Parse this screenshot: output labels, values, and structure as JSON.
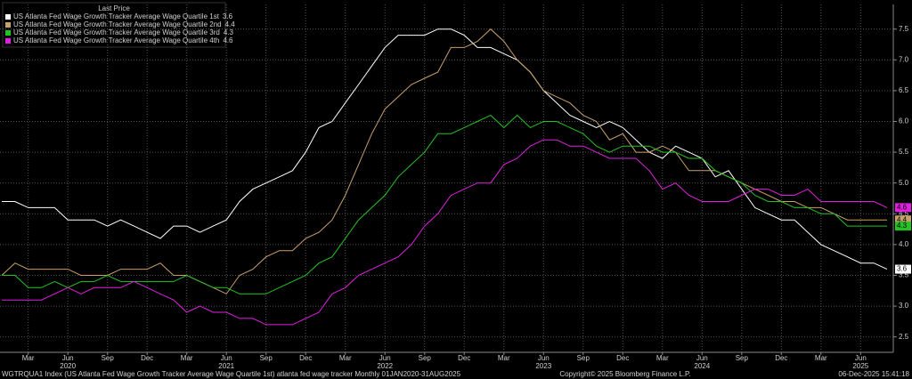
{
  "chart_data": {
    "type": "line",
    "legend_title": "Last Price",
    "footer_left": "WGTRQUA1 Index (US Atlanta Fed Wage Growth Tracker Average Wage Quartile 1st) atlanta fed wage tracker Monthly 01JAN2020-31AUG2025",
    "footer_center": "Copyright© 2025 Bloomberg Finance L.P.",
    "footer_right": "06-Dec-2025 15:41:18",
    "x": [
      "2020-01",
      "2020-02",
      "2020-03",
      "2020-04",
      "2020-05",
      "2020-06",
      "2020-07",
      "2020-08",
      "2020-09",
      "2020-10",
      "2020-11",
      "2020-12",
      "2021-01",
      "2021-02",
      "2021-03",
      "2021-04",
      "2021-05",
      "2021-06",
      "2021-07",
      "2021-08",
      "2021-09",
      "2021-10",
      "2021-11",
      "2021-12",
      "2022-01",
      "2022-02",
      "2022-03",
      "2022-04",
      "2022-05",
      "2022-06",
      "2022-07",
      "2022-08",
      "2022-09",
      "2022-10",
      "2022-11",
      "2022-12",
      "2023-01",
      "2023-02",
      "2023-03",
      "2023-04",
      "2023-05",
      "2023-06",
      "2023-07",
      "2023-08",
      "2023-09",
      "2023-10",
      "2023-11",
      "2023-12",
      "2024-01",
      "2024-02",
      "2024-03",
      "2024-04",
      "2024-05",
      "2024-06",
      "2024-07",
      "2024-08",
      "2024-09",
      "2024-10",
      "2024-11",
      "2024-12",
      "2025-01",
      "2025-02",
      "2025-03",
      "2025-04",
      "2025-05",
      "2025-06",
      "2025-07",
      "2025-08"
    ],
    "xticks": [
      {
        "value": "2020-03",
        "label": "Mar"
      },
      {
        "value": "2020-06",
        "label": "Jun"
      },
      {
        "value": "2020-09",
        "label": "Sep"
      },
      {
        "value": "2020-12",
        "label": "Dec"
      },
      {
        "value": "2021-03",
        "label": "Mar"
      },
      {
        "value": "2021-06",
        "label": "Jun"
      },
      {
        "value": "2021-09",
        "label": "Sep"
      },
      {
        "value": "2021-12",
        "label": "Dec"
      },
      {
        "value": "2022-03",
        "label": "Mar"
      },
      {
        "value": "2022-06",
        "label": "Jun"
      },
      {
        "value": "2022-09",
        "label": "Sep"
      },
      {
        "value": "2022-12",
        "label": "Dec"
      },
      {
        "value": "2023-03",
        "label": "Mar"
      },
      {
        "value": "2023-06",
        "label": "Jun"
      },
      {
        "value": "2023-09",
        "label": "Sep"
      },
      {
        "value": "2023-12",
        "label": "Dec"
      },
      {
        "value": "2024-03",
        "label": "Mar"
      },
      {
        "value": "2024-06",
        "label": "Jun"
      },
      {
        "value": "2024-09",
        "label": "Sep"
      },
      {
        "value": "2024-12",
        "label": "Dec"
      },
      {
        "value": "2025-03",
        "label": "Mar"
      },
      {
        "value": "2025-06",
        "label": "Jun"
      }
    ],
    "xyears": [
      {
        "value": "2020-06",
        "label": "2020"
      },
      {
        "value": "2021-06",
        "label": "2021"
      },
      {
        "value": "2022-06",
        "label": "2022"
      },
      {
        "value": "2023-06",
        "label": "2023"
      },
      {
        "value": "2024-06",
        "label": "2024"
      },
      {
        "value": "2025-06",
        "label": "2025"
      }
    ],
    "ylim": [
      2.25,
      7.9
    ],
    "yticks": [
      2.5,
      {
        "value": 3,
        "label": "3.0"
      },
      3.5,
      {
        "value": 4,
        "label": "4.0"
      },
      4.5,
      {
        "value": 5,
        "label": "5.0"
      },
      5.5,
      {
        "value": 6,
        "label": "6.0"
      },
      6.5,
      {
        "value": 7,
        "label": "7.0"
      },
      7.5
    ],
    "grid": true,
    "series": [
      {
        "name": "US Atlanta Fed Wage Growth Tracker Average Wage Quartile 1st",
        "color": "#ffffff",
        "values": [
          4.7,
          4.7,
          4.6,
          4.6,
          4.6,
          4.4,
          4.4,
          4.4,
          4.3,
          4.4,
          4.3,
          4.2,
          4.1,
          4.3,
          4.3,
          4.2,
          4.3,
          4.4,
          4.7,
          4.9,
          5.0,
          5.1,
          5.2,
          5.5,
          5.9,
          6.0,
          6.3,
          6.6,
          6.9,
          7.2,
          7.4,
          7.4,
          7.4,
          7.5,
          7.5,
          7.4,
          7.2,
          7.2,
          7.1,
          7.0,
          6.8,
          6.5,
          6.3,
          6.1,
          6.0,
          5.9,
          6.0,
          5.9,
          5.7,
          5.5,
          5.4,
          5.6,
          5.5,
          5.4,
          5.1,
          5.2,
          4.9,
          4.6,
          4.5,
          4.4,
          4.4,
          4.2,
          4.0,
          3.9,
          3.8,
          3.7,
          3.7,
          3.6
        ]
      },
      {
        "name": "US Atlanta Fed Wage Growth Tracker Average Wage Quartile 2nd",
        "color": "#c9a06a",
        "values": [
          3.5,
          3.7,
          3.6,
          3.6,
          3.6,
          3.6,
          3.5,
          3.5,
          3.5,
          3.6,
          3.6,
          3.6,
          3.7,
          3.5,
          3.5,
          3.4,
          3.3,
          3.2,
          3.5,
          3.6,
          3.8,
          3.9,
          3.9,
          4.1,
          4.2,
          4.4,
          4.8,
          5.3,
          5.8,
          6.2,
          6.4,
          6.6,
          6.7,
          6.8,
          7.2,
          7.2,
          7.3,
          7.5,
          7.3,
          7.0,
          6.8,
          6.5,
          6.4,
          6.3,
          6.1,
          6.0,
          5.7,
          5.8,
          5.5,
          5.5,
          5.6,
          5.5,
          5.2,
          5.2,
          5.2,
          5.1,
          5.0,
          4.9,
          4.8,
          4.7,
          4.7,
          4.6,
          4.6,
          4.5,
          4.4,
          4.4,
          4.4,
          4.4
        ]
      },
      {
        "name": "US Atlanta Fed Wage Growth Tracker Average Wage Quartile 3rd",
        "color": "#22c322",
        "values": [
          3.5,
          3.5,
          3.3,
          3.3,
          3.4,
          3.3,
          3.4,
          3.4,
          3.5,
          3.4,
          3.4,
          3.4,
          3.4,
          3.4,
          3.5,
          3.4,
          3.3,
          3.3,
          3.2,
          3.2,
          3.2,
          3.3,
          3.4,
          3.5,
          3.7,
          3.8,
          4.1,
          4.4,
          4.6,
          4.8,
          5.1,
          5.3,
          5.5,
          5.8,
          5.8,
          5.9,
          6.0,
          6.1,
          5.9,
          6.1,
          5.9,
          6.0,
          6.0,
          5.9,
          5.8,
          5.6,
          5.5,
          5.6,
          5.6,
          5.6,
          5.5,
          5.5,
          5.4,
          5.4,
          5.2,
          5.1,
          5.0,
          4.8,
          4.7,
          4.7,
          4.6,
          4.6,
          4.5,
          4.5,
          4.3,
          4.3,
          4.3,
          4.3
        ]
      },
      {
        "name": "US Atlanta Fed Wage Growth Tracker Average Wage Quartile 4th",
        "color": "#e020e0",
        "values": [
          3.1,
          3.1,
          3.1,
          3.1,
          3.2,
          3.3,
          3.2,
          3.3,
          3.3,
          3.3,
          3.4,
          3.3,
          3.2,
          3.1,
          2.9,
          3.0,
          2.9,
          2.9,
          2.8,
          2.8,
          2.7,
          2.7,
          2.7,
          2.8,
          2.9,
          3.2,
          3.3,
          3.5,
          3.6,
          3.7,
          3.8,
          4.0,
          4.3,
          4.5,
          4.8,
          4.9,
          5.0,
          5.0,
          5.3,
          5.4,
          5.6,
          5.7,
          5.7,
          5.6,
          5.6,
          5.5,
          5.4,
          5.4,
          5.4,
          5.2,
          4.9,
          5.0,
          4.8,
          4.7,
          4.7,
          4.7,
          4.8,
          4.9,
          4.9,
          4.8,
          4.8,
          4.9,
          4.7,
          4.7,
          4.7,
          4.7,
          4.7,
          4.6
        ]
      }
    ]
  }
}
